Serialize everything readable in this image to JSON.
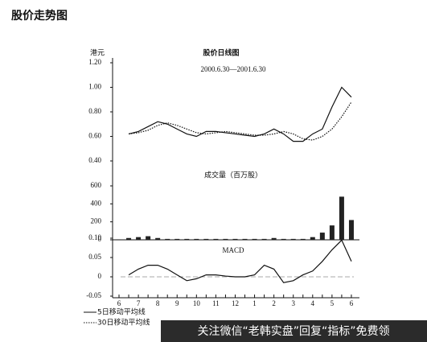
{
  "header_title": "股价走势图",
  "watermark": "关注微信“老韩实盘”回复“指标”免费领",
  "chart_data": [
    {
      "type": "line",
      "title": "股价日线图",
      "subtitle": "2000.6.30—2001.6.30",
      "y_label": "港元",
      "ylim": [
        0.4,
        1.2
      ],
      "yticks": [
        {
          "value": 0.4,
          "label": "0.40"
        },
        {
          "value": 0.6,
          "label": "0.60"
        },
        {
          "value": 0.8,
          "label": "0.80"
        },
        {
          "value": 1.0,
          "label": "1.00"
        },
        {
          "value": 1.2,
          "label": "1.20"
        }
      ],
      "series": [
        {
          "name": "5日移动平均线",
          "color": "#111111",
          "dash": "none",
          "values": [
            null,
            0.62,
            0.64,
            0.68,
            0.72,
            0.7,
            0.66,
            0.62,
            0.6,
            0.64,
            0.64,
            0.63,
            0.62,
            0.61,
            0.6,
            0.62,
            0.66,
            0.62,
            0.56,
            0.56,
            0.62,
            0.66,
            0.84,
            1.0,
            0.92
          ]
        },
        {
          "name": "30日移动平均线",
          "color": "#111111",
          "dash": "1.5 1.5",
          "values": [
            null,
            0.62,
            0.63,
            0.65,
            0.69,
            0.71,
            0.69,
            0.66,
            0.63,
            0.62,
            0.63,
            0.64,
            0.63,
            0.62,
            0.61,
            0.61,
            0.62,
            0.64,
            0.62,
            0.58,
            0.57,
            0.6,
            0.66,
            0.76,
            0.88
          ]
        }
      ]
    },
    {
      "type": "bar",
      "title": "成交量（百万股）",
      "color": "#222222",
      "ylim": [
        0,
        600
      ],
      "yticks": [
        0,
        200,
        400,
        600
      ],
      "values": [
        5,
        20,
        30,
        40,
        20,
        10,
        10,
        10,
        10,
        10,
        10,
        10,
        10,
        10,
        10,
        10,
        20,
        10,
        10,
        10,
        30,
        80,
        160,
        480,
        220
      ]
    },
    {
      "type": "line",
      "title": "MACD",
      "color": "#111111",
      "ylim": [
        -0.05,
        0.1
      ],
      "yticks": [
        {
          "value": -0.05,
          "label": "-0.05"
        },
        0,
        0.05,
        {
          "value": 0.1,
          "label": "0.10"
        }
      ],
      "categories": [
        "6",
        null,
        "7",
        null,
        "8",
        null,
        "9",
        null,
        "10",
        null,
        "11",
        null,
        "12",
        null,
        "1",
        null,
        "2",
        null,
        "3",
        null,
        "4",
        null,
        "5",
        null,
        "6"
      ],
      "values": [
        null,
        0.005,
        0.02,
        0.03,
        0.03,
        0.02,
        0.005,
        -0.01,
        -0.005,
        0.005,
        0.005,
        0.002,
        0.0,
        0.0,
        0.005,
        0.03,
        0.02,
        -0.015,
        -0.01,
        0.005,
        0.015,
        0.04,
        0.07,
        0.095,
        0.04
      ]
    }
  ]
}
